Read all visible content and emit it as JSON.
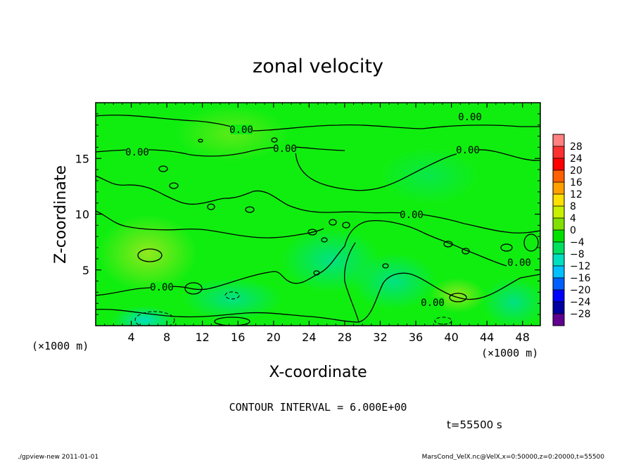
{
  "chart_data": {
    "type": "heatmap",
    "title": "zonal velocity",
    "xlabel": "X-coordinate",
    "ylabel": "Z-coordinate",
    "x_unit": "(×1000 m)",
    "y_unit": "(×1000 m)",
    "xlim": [
      0,
      50
    ],
    "ylim": [
      0,
      20
    ],
    "x_ticks": [
      "4",
      "8",
      "12",
      "16",
      "20",
      "24",
      "28",
      "32",
      "36",
      "40",
      "44",
      "48"
    ],
    "x_tick_values": [
      4,
      8,
      12,
      16,
      20,
      24,
      28,
      32,
      36,
      40,
      44,
      48
    ],
    "y_ticks": [
      "5",
      "10",
      "15"
    ],
    "y_tick_values": [
      5,
      10,
      15
    ],
    "contour_labels": [
      "0.00",
      "0.00",
      "0.00",
      "0.00",
      "0.00",
      "0.00",
      "0.00",
      "0.00",
      "0.00"
    ],
    "contour_interval_text": "CONTOUR INTERVAL = 6.000E+00",
    "time_text": "t=55500 s",
    "colorbar": {
      "labels": [
        "28",
        "24",
        "20",
        "16",
        "12",
        "8",
        "4",
        "0",
        "−4",
        "−8",
        "−12",
        "−16",
        "−20",
        "−24",
        "−28"
      ],
      "colors": [
        "#ff8080",
        "#ff3030",
        "#ff0000",
        "#ff6000",
        "#ffa000",
        "#ffe000",
        "#c8f000",
        "#80e000",
        "#00e000",
        "#00e060",
        "#00e0c0",
        "#00c0ff",
        "#0060ff",
        "#0000ff",
        "#0000a0",
        "#600090"
      ]
    }
  },
  "footer": {
    "left": "./gpview-new   2011-01-01",
    "right": "MarsCond_VelX.nc@VelX,x=0:50000,z=0:20000,t=55500"
  }
}
